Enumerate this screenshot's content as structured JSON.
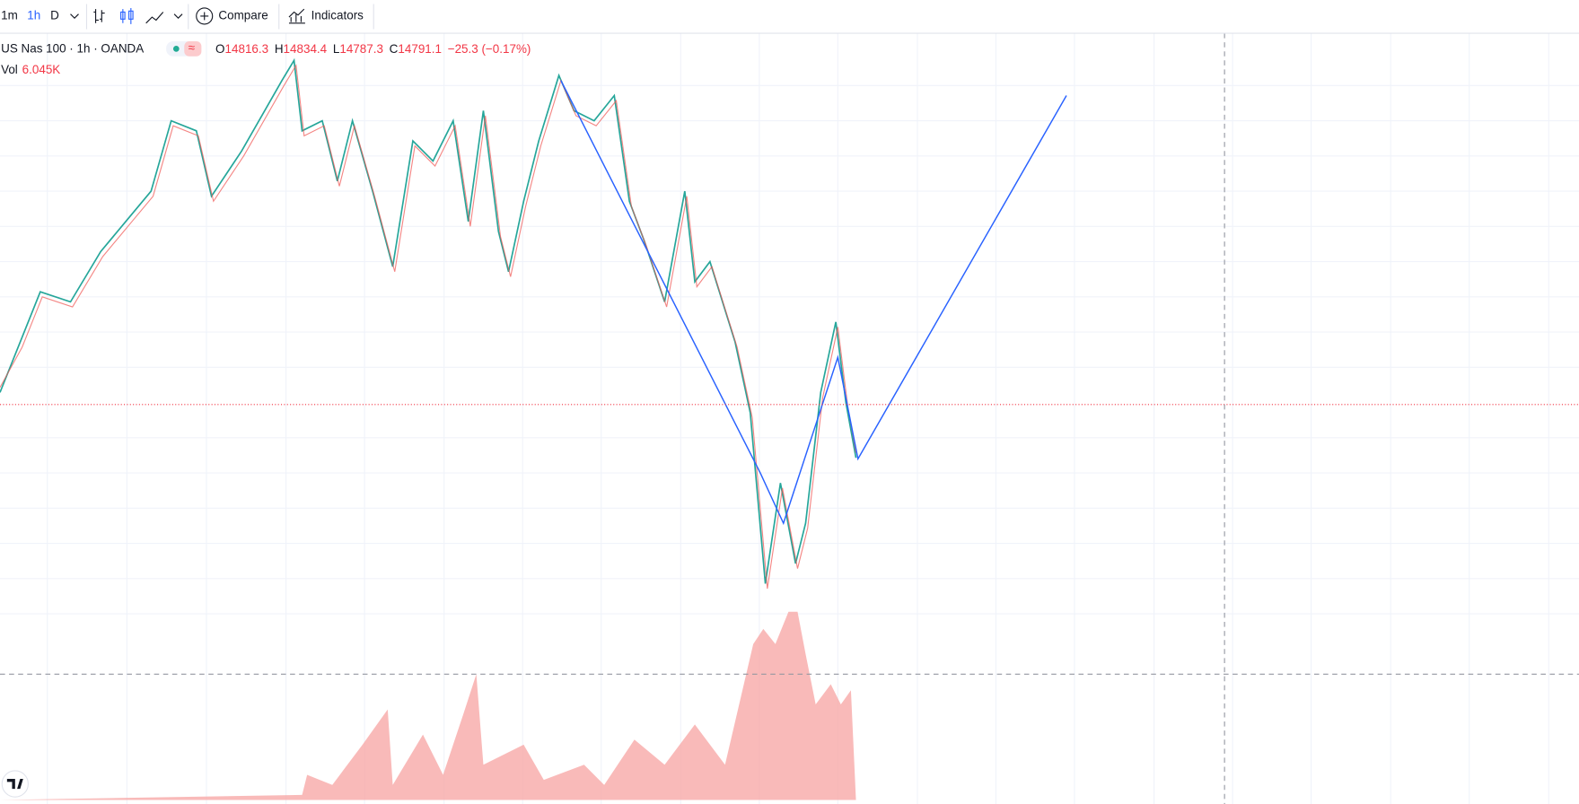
{
  "toolbar": {
    "intervals": [
      "1m",
      "1h",
      "D"
    ],
    "compare": "Compare",
    "indicators": "Indicators"
  },
  "legend": {
    "symbol": "US Nas 100 · 1h · OANDA",
    "open_label": "O",
    "open": "14816.3",
    "high_label": "H",
    "high": "14834.4",
    "low_label": "L",
    "low": "14787.3",
    "close_label": "C",
    "close": "14791.1",
    "change": "−25.3 (−0.17%)",
    "volume_label": "Vol",
    "volume": "6.045K"
  }
}
